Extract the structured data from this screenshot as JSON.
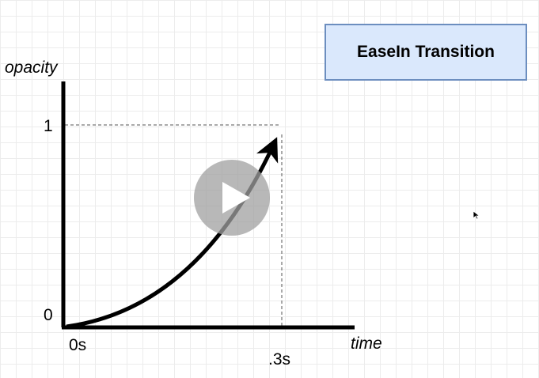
{
  "title": "EaseIn Transition",
  "y_axis_label": "opacity",
  "x_axis_label": "time",
  "y_ticks": {
    "top": "1",
    "bottom": "0"
  },
  "x_ticks": {
    "start": "0s",
    "end": ".3s"
  },
  "colors": {
    "title_fill": "#dae8fc",
    "title_border": "#6c8ebf",
    "axis": "#000000",
    "curve": "#000000",
    "guide": "#555555",
    "play_overlay": "#a0a0a0"
  },
  "icons": {
    "play": "play-icon",
    "cursor": "mouse-cursor-icon"
  }
}
